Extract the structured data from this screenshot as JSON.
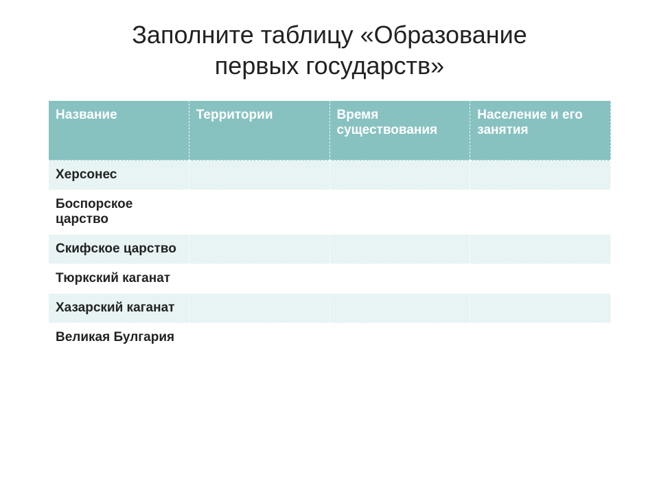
{
  "title_line1": "Заполните таблицу «Образование",
  "title_line2": "первых государств»",
  "table": {
    "header_bg": "#87c2c1",
    "header_fg": "#ffffff",
    "band_a_bg": "#e8f3f3",
    "band_b_bg": "#ffffff",
    "columns": [
      "Название",
      "Территории",
      "Время существования",
      "Население и его занятия"
    ],
    "rows": [
      {
        "label": "Херсонес",
        "cells": [
          "",
          "",
          ""
        ]
      },
      {
        "label": "Боспорское царство",
        "cells": [
          "",
          "",
          ""
        ]
      },
      {
        "label": "Скифское царство",
        "cells": [
          "",
          "",
          ""
        ]
      },
      {
        "label": "Тюркский каганат",
        "cells": [
          "",
          "",
          ""
        ]
      },
      {
        "label": "Хазарский каганат",
        "cells": [
          "",
          "",
          ""
        ]
      },
      {
        "label": "Великая Булгария",
        "cells": [
          "",
          "",
          ""
        ]
      }
    ]
  }
}
